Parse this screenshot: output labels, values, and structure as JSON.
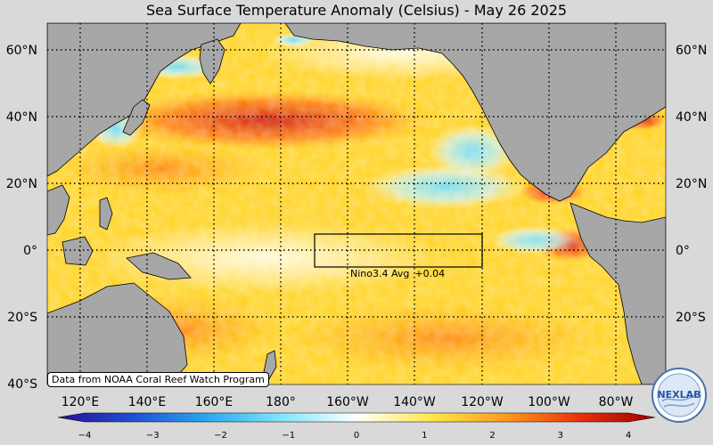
{
  "title": "Sea Surface Temperature Anomaly (Celsius) - May 26 2025",
  "credit": "Data from NOAA Coral Reef Watch Program",
  "lat_labels": [
    "60°N",
    "40°N",
    "20°N",
    "0°",
    "20°S",
    "40°S"
  ],
  "lon_labels": [
    "120°E",
    "140°E",
    "160°E",
    "180°",
    "160°W",
    "140°W",
    "120°W",
    "100°W",
    "80°W"
  ],
  "nino": {
    "label": "Nino3.4 Avg",
    "value": "+0.04"
  },
  "colorbar": {
    "ticks": [
      "−4",
      "−3",
      "−2",
      "−1",
      "0",
      "1",
      "2",
      "3",
      "4"
    ],
    "range": [
      -4,
      4
    ],
    "colors": [
      "#2a0f8f",
      "#1e4fd6",
      "#2aa8f0",
      "#7fe6ff",
      "#ffffff",
      "#ffe84a",
      "#ff9a1a",
      "#e8300a",
      "#9a0000"
    ]
  },
  "logo_text": "NEXLAB",
  "colors": {
    "land": "#a7a7a7",
    "background": "#d9d9d9",
    "warm": "#ffb300",
    "hot": "#d40000",
    "cool": "#4fd0ff"
  }
}
